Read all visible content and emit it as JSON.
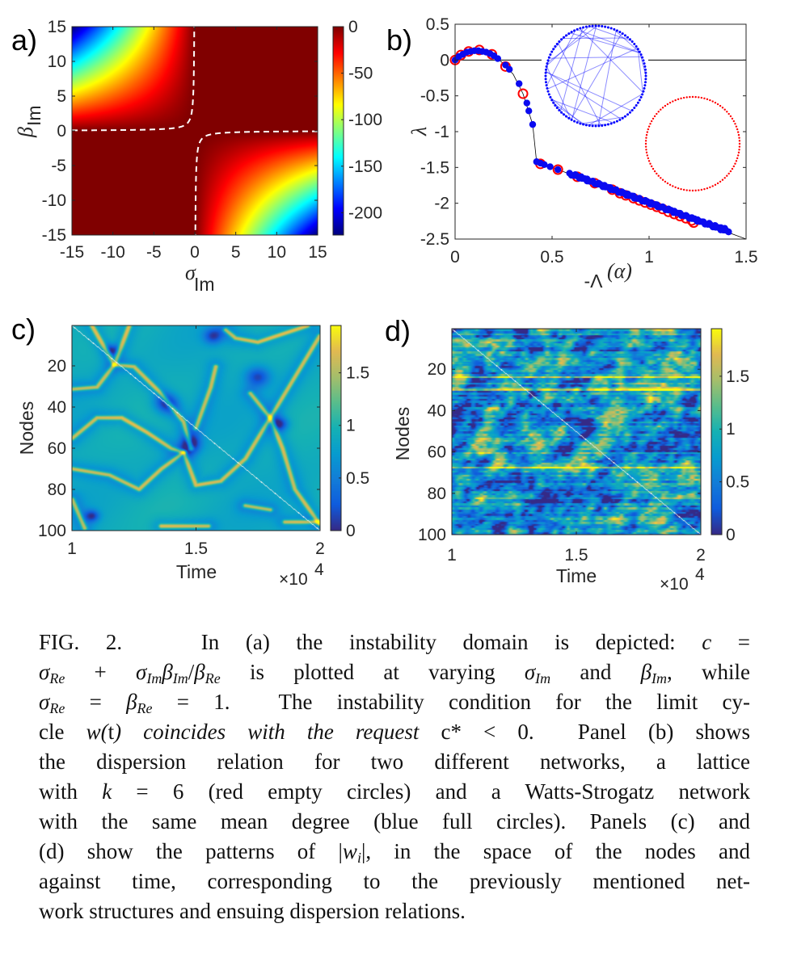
{
  "chart_data": [
    {
      "panel_label": "a)",
      "type": "heatmap",
      "xlabel": "σ",
      "xlabel_sub": "Im",
      "ylabel": "β",
      "ylabel_sub": "Im",
      "xlim": [
        -15,
        15
      ],
      "ylim": [
        -15,
        15
      ],
      "xticks": [
        "-15",
        "-10",
        "-5",
        "0",
        "5",
        "10",
        "15"
      ],
      "yticks": [
        "15",
        "10",
        "5",
        "0",
        "-5",
        "-10",
        "-15"
      ],
      "colormap": "jet",
      "colorbar": {
        "range": [
          -224,
          0
        ],
        "ticks": [
          "0",
          "-50",
          "-100",
          "-150",
          "-200"
        ]
      },
      "contour": {
        "level": 0,
        "color": "#ffffff",
        "style": "dashed"
      }
    },
    {
      "panel_label": "b)",
      "type": "scatter",
      "xlabel": "-Λ",
      "xlabel_sup": "(α)",
      "ylabel": "λ",
      "xlim": [
        0,
        1.5
      ],
      "ylim": [
        -2.5,
        0.5
      ],
      "xticks": [
        "0",
        "0.5",
        "1",
        "1.5"
      ],
      "yticks": [
        "0.5",
        "0",
        "-0.5",
        "-1",
        "-1.5",
        "-2",
        "-2.5"
      ],
      "series": [
        {
          "marker": "empty-circle",
          "color": "#ff0000",
          "points": [
            [
              0,
              0
            ],
            [
              0.03,
              0.07
            ],
            [
              0.07,
              0.12
            ],
            [
              0.125,
              0.14
            ],
            [
              0.19,
              0.08
            ],
            [
              0.26,
              -0.09
            ],
            [
              0.35,
              -0.47
            ],
            [
              0.44,
              -1.45
            ],
            [
              0.53,
              -1.53
            ],
            [
              0.63,
              -1.63
            ],
            [
              0.72,
              -1.72
            ],
            [
              0.81,
              -1.81
            ],
            [
              0.85,
              -1.86
            ],
            [
              0.88,
              -1.89
            ],
            [
              0.92,
              -1.93
            ],
            [
              0.95,
              -1.96
            ],
            [
              0.98,
              -1.99
            ],
            [
              1.01,
              -2.02
            ],
            [
              1.04,
              -2.05
            ],
            [
              1.07,
              -2.08
            ],
            [
              1.1,
              -2.12
            ],
            [
              1.13,
              -2.15
            ],
            [
              1.16,
              -2.18
            ],
            [
              1.19,
              -2.21
            ],
            [
              1.22,
              -2.24
            ],
            [
              1.23,
              -2.27
            ]
          ]
        },
        {
          "marker": "filled-circle",
          "color": "#0a0af0",
          "points": [
            [
              0,
              0
            ],
            [
              0.02,
              0.05
            ],
            [
              0.04,
              0.08
            ],
            [
              0.06,
              0.11
            ],
            [
              0.08,
              0.12
            ],
            [
              0.1,
              0.13
            ],
            [
              0.12,
              0.13
            ],
            [
              0.14,
              0.12
            ],
            [
              0.16,
              0.11
            ],
            [
              0.18,
              0.09
            ],
            [
              0.2,
              0.06
            ],
            [
              0.22,
              0.02
            ],
            [
              0.26,
              -0.07
            ],
            [
              0.28,
              -0.13
            ],
            [
              0.33,
              -0.33
            ],
            [
              0.37,
              -0.6
            ],
            [
              0.38,
              -0.71
            ],
            [
              0.4,
              -0.9
            ],
            [
              0.42,
              -1.42
            ],
            [
              0.44,
              -1.44
            ],
            [
              0.46,
              -1.46
            ],
            [
              0.49,
              -1.49
            ],
            [
              0.53,
              -1.53
            ],
            [
              0.59,
              -1.58
            ],
            [
              0.62,
              -1.6
            ],
            [
              0.65,
              -1.63
            ],
            [
              0.68,
              -1.66
            ],
            [
              0.71,
              -1.69
            ],
            [
              0.74,
              -1.72
            ],
            [
              0.77,
              -1.75
            ],
            [
              0.8,
              -1.78
            ],
            [
              0.83,
              -1.81
            ],
            [
              0.86,
              -1.84
            ],
            [
              0.89,
              -1.87
            ],
            [
              0.92,
              -1.9
            ],
            [
              0.95,
              -1.93
            ],
            [
              0.98,
              -1.96
            ],
            [
              1.01,
              -1.99
            ],
            [
              1.04,
              -2.02
            ],
            [
              1.07,
              -2.05
            ],
            [
              1.1,
              -2.08
            ],
            [
              1.13,
              -2.11
            ],
            [
              1.16,
              -2.14
            ],
            [
              1.19,
              -2.17
            ],
            [
              1.22,
              -2.2
            ],
            [
              1.25,
              -2.23
            ],
            [
              1.28,
              -2.26
            ],
            [
              1.31,
              -2.28
            ],
            [
              1.34,
              -2.31
            ],
            [
              1.37,
              -2.34
            ],
            [
              1.39,
              -2.35
            ],
            [
              1.41,
              -2.4
            ]
          ]
        }
      ],
      "curve": [
        [
          0,
          0
        ],
        [
          0.05,
          0.09
        ],
        [
          0.1,
          0.13
        ],
        [
          0.15,
          0.12
        ],
        [
          0.2,
          0.06
        ],
        [
          0.25,
          -0.05
        ],
        [
          0.3,
          -0.2
        ],
        [
          0.35,
          -0.47
        ],
        [
          0.4,
          -0.9
        ],
        [
          0.42,
          -1.42
        ],
        [
          1.5,
          -2.5
        ]
      ],
      "insets": [
        {
          "network": "watts-strogatz",
          "color": "#0000ff",
          "nodes": 100
        },
        {
          "network": "lattice",
          "color": "#ff0000",
          "nodes": 100
        }
      ]
    },
    {
      "panel_label": "c)",
      "type": "heatmap",
      "xlabel": "Time",
      "x_multiplier": "×10",
      "x_multiplier_exp": "4",
      "ylabel": "Nodes",
      "xlim": [
        1,
        2
      ],
      "ylim": [
        1,
        100
      ],
      "xticks": [
        "1",
        "1.5",
        "2"
      ],
      "yticks": [
        "20",
        "40",
        "60",
        "80",
        "100"
      ],
      "colormap": "parula",
      "colorbar": {
        "range": [
          0,
          1.95
        ],
        "ticks": [
          "0",
          "0.5",
          "1",
          "1.5"
        ]
      }
    },
    {
      "panel_label": "d)",
      "type": "heatmap",
      "xlabel": "Time",
      "x_multiplier": "×10",
      "x_multiplier_exp": "4",
      "ylabel": "Nodes",
      "xlim": [
        1,
        2
      ],
      "ylim": [
        1,
        100
      ],
      "xticks": [
        "1",
        "1.5",
        "2"
      ],
      "yticks": [
        "20",
        "40",
        "60",
        "80",
        "100"
      ],
      "colormap": "parula",
      "colorbar": {
        "range": [
          0,
          1.95
        ],
        "ticks": [
          "0",
          "0.5",
          "1",
          "1.5"
        ]
      }
    }
  ],
  "caption": {
    "lines": [
      "FIG. 2.&nbsp;&nbsp; In (a) the instability domain is depicted: *c* =",
      "*σ*_{Re} + *σ*_{Im}*β*_{Im}/*β*_{Re} is plotted at varying *σ*_{Im} and *β*_{Im}, while",
      "*σ*_{Re} = *β*_{Re} = 1.&nbsp; The instability condition for the limit cy-",
      "cle *w*^{*}(*t*) coincides with the request *c* < 0.&nbsp; Panel (b) shows",
      "the dispersion relation for two different networks, a lattice",
      "with *k* = 6 (red empty circles) and a Watts-Strogatz network",
      "with the same mean degree (blue full circles). Panels (c) and",
      "(d) show the patterns of |*w*_{i}|, in the space of the nodes and",
      "against time, corresponding to the previously mentioned net-",
      "work structures and ensuing dispersion relations."
    ]
  }
}
